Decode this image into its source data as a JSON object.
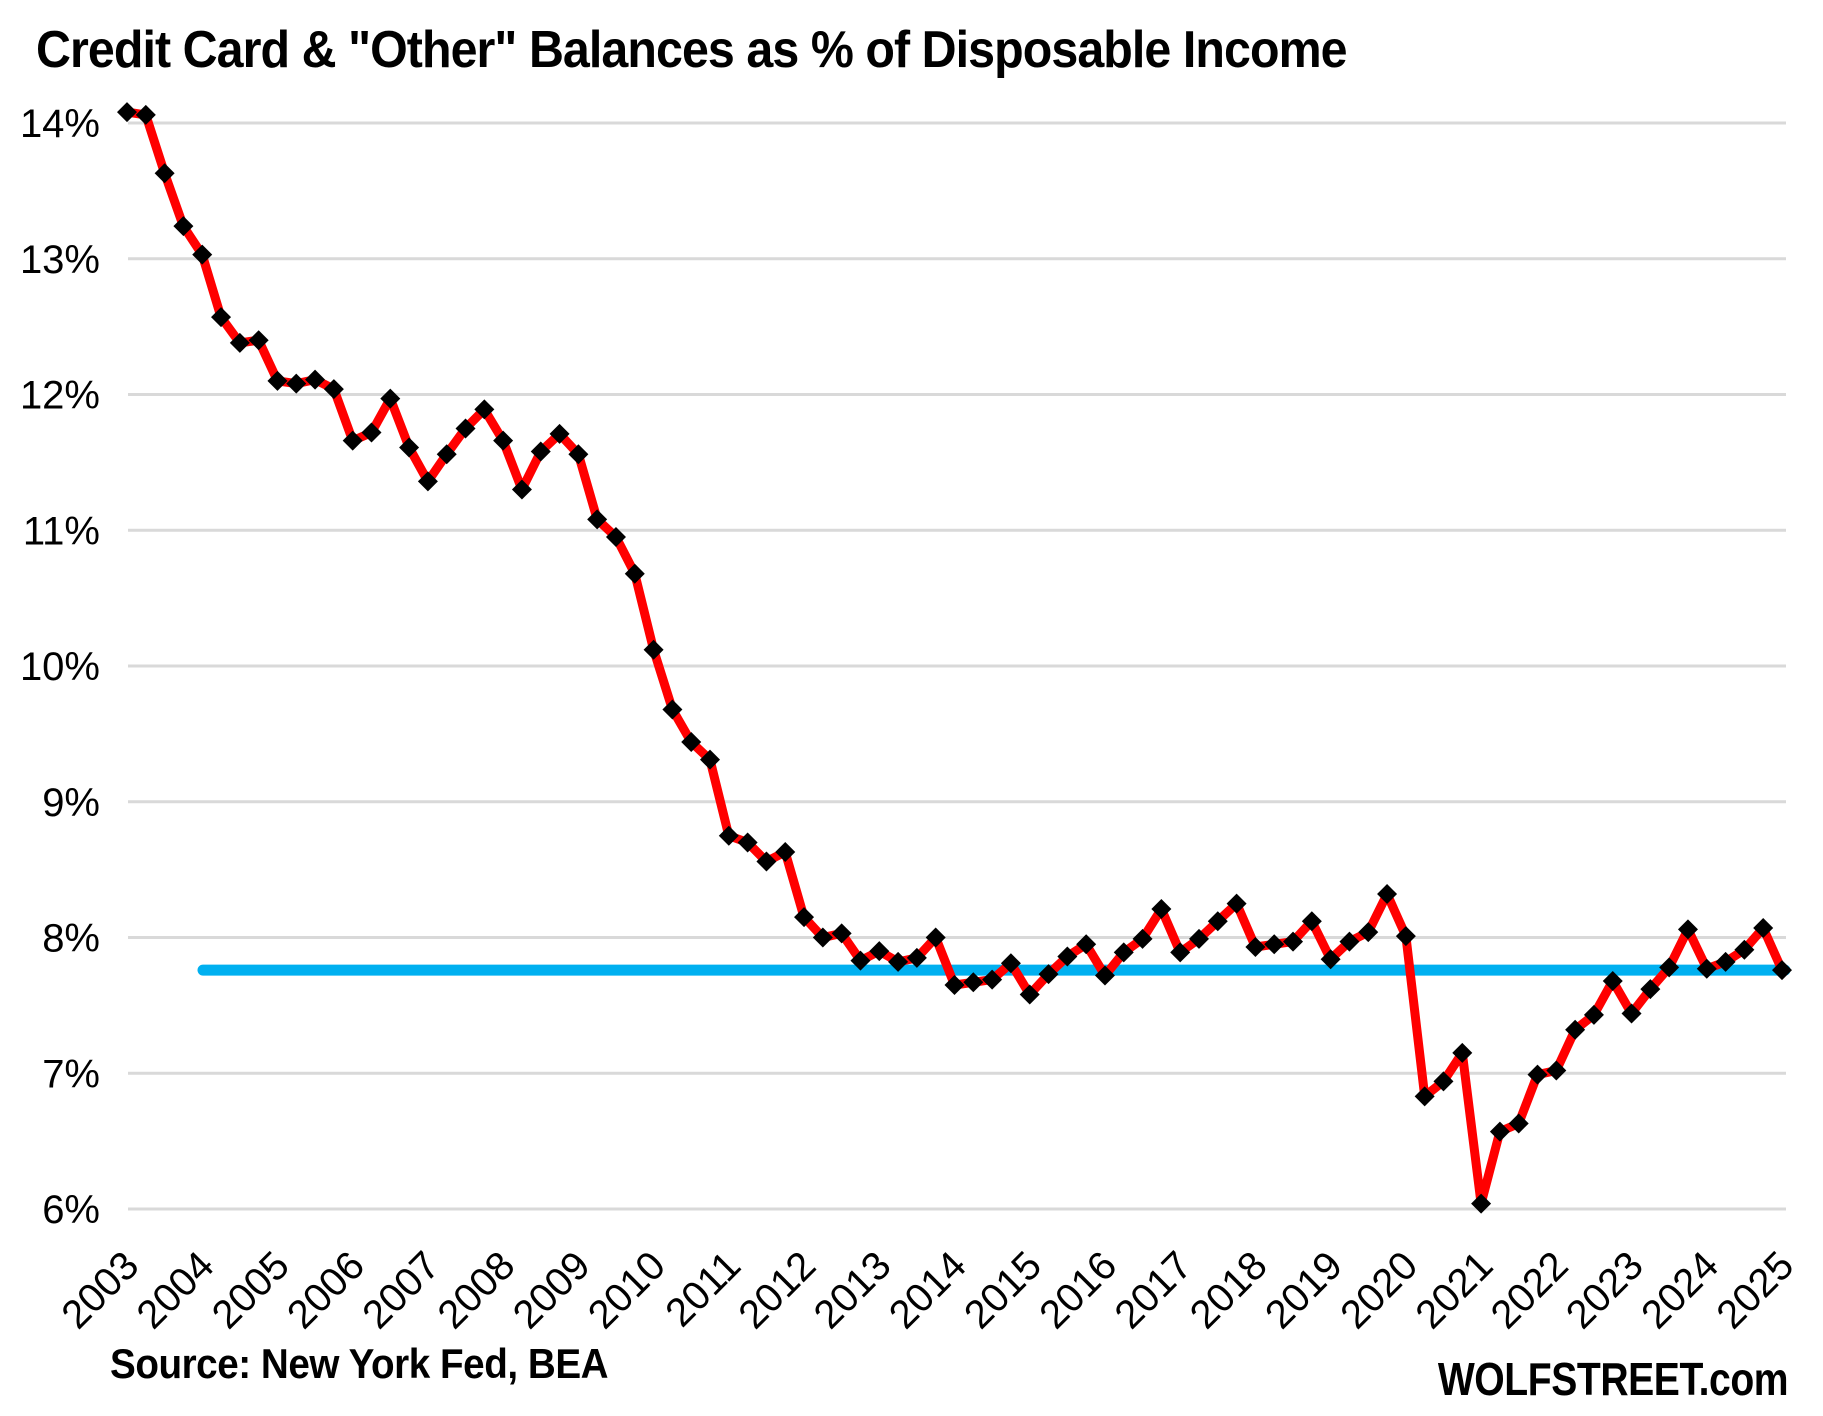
{
  "header": {
    "title": "Credit Card & \"Other\" Balances as % of Disposable Income"
  },
  "footer": {
    "source": "Source: New York Fed, BEA",
    "brand": "WOLFSTREET.com"
  },
  "chart_data": {
    "type": "line",
    "title": "Credit Card & \"Other\" Balances as % of Disposable Income",
    "xlabel": "",
    "ylabel": "",
    "frequency": "quarterly",
    "start_period": "2003 Q1",
    "end_period": "2025 Q1",
    "ylim": [
      6,
      14
    ],
    "y_tick_step": 1,
    "grid": "horizontal",
    "legend_position": "none",
    "y_tick_labels": [
      "14%",
      "13%",
      "12%",
      "11%",
      "10%",
      "9%",
      "8%",
      "7%",
      "6%"
    ],
    "x_tick_labels": [
      "2003",
      "2004",
      "2005",
      "2006",
      "2007",
      "2008",
      "2009",
      "2010",
      "2011",
      "2012",
      "2013",
      "2014",
      "2015",
      "2016",
      "2017",
      "2018",
      "2019",
      "2020",
      "2021",
      "2022",
      "2023",
      "2024",
      "2025"
    ],
    "grid_color": "#D9D9D9",
    "background_color": "#FFFFFF",
    "text_color": "#000000",
    "series": [
      {
        "name": "Credit card and other balances as percent of disposable income",
        "color": "#FF0000",
        "marker": "diamond",
        "marker_color": "#000000",
        "values": [
          14.08,
          14.06,
          13.63,
          13.24,
          13.03,
          12.57,
          12.38,
          12.4,
          12.1,
          12.08,
          12.11,
          12.04,
          11.66,
          11.72,
          11.97,
          11.61,
          11.36,
          11.56,
          11.75,
          11.89,
          11.66,
          11.3,
          11.58,
          11.71,
          11.56,
          11.08,
          10.95,
          10.68,
          10.12,
          9.68,
          9.44,
          9.31,
          8.75,
          8.7,
          8.56,
          8.63,
          8.15,
          8.0,
          8.03,
          7.83,
          7.9,
          7.82,
          7.85,
          8.0,
          7.65,
          7.67,
          7.69,
          7.81,
          7.58,
          7.73,
          7.86,
          7.95,
          7.72,
          7.89,
          7.99,
          8.21,
          7.89,
          7.99,
          8.12,
          8.25,
          7.93,
          7.95,
          7.97,
          8.12,
          7.84,
          7.97,
          8.04,
          8.32,
          8.01,
          6.83,
          6.94,
          7.15,
          6.04,
          6.57,
          6.63,
          6.99,
          7.02,
          7.32,
          7.43,
          7.68,
          7.44,
          7.62,
          7.78,
          8.06,
          7.77,
          7.82,
          7.91,
          8.07,
          7.76
        ]
      }
    ],
    "reference_line": {
      "value": 7.76,
      "color": "#00B0F0",
      "description": "horizontal line marking latest level"
    }
  }
}
